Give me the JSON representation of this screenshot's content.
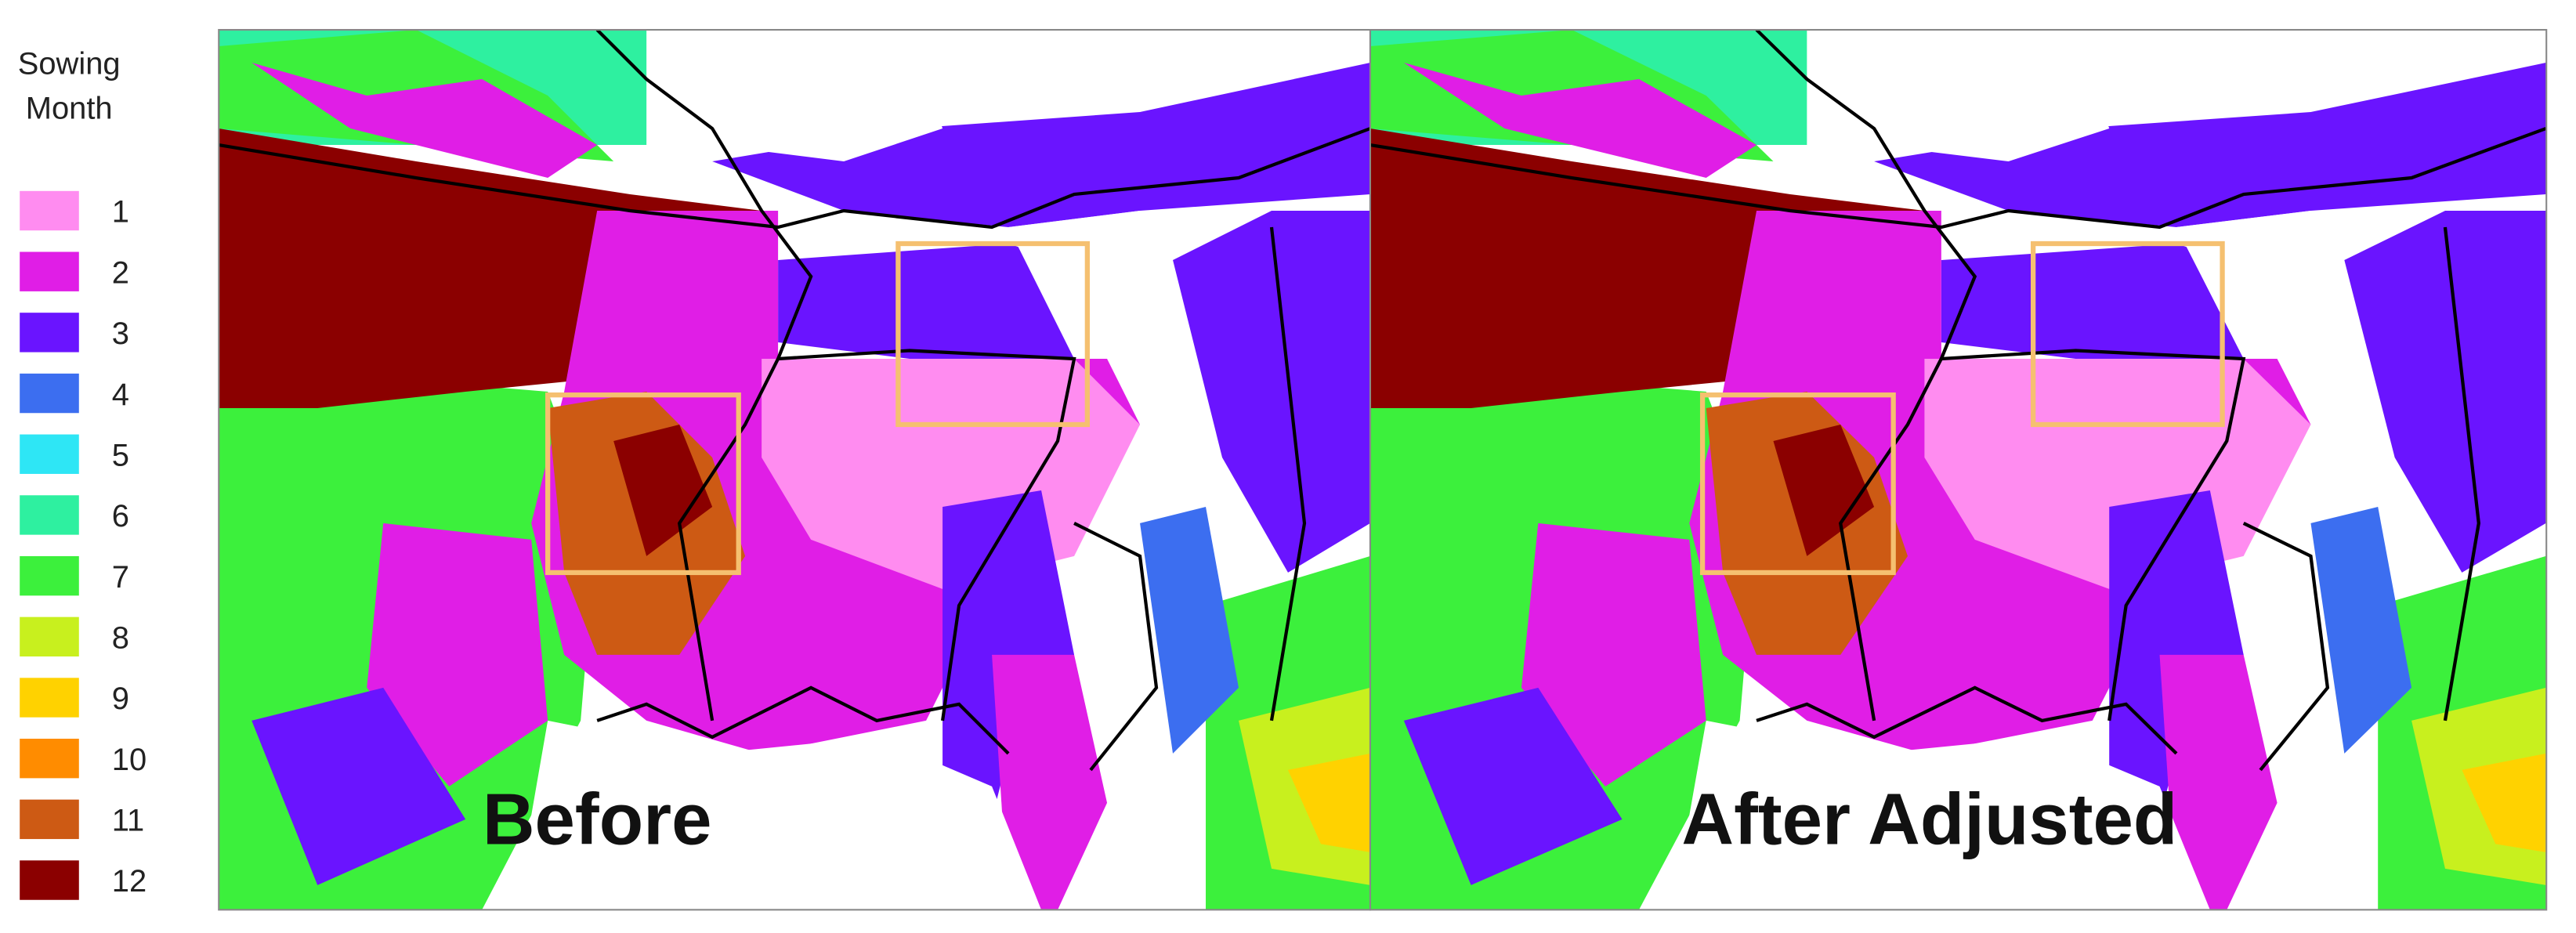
{
  "legend": {
    "title_lines": [
      "Sowing",
      "Month"
    ],
    "items": [
      {
        "label": "1",
        "color": "#ff8cf0"
      },
      {
        "label": "2",
        "color": "#e01ee6"
      },
      {
        "label": "3",
        "color": "#6a14ff"
      },
      {
        "label": "4",
        "color": "#3c6ef0"
      },
      {
        "label": "5",
        "color": "#2ee6f5"
      },
      {
        "label": "6",
        "color": "#2ef0a0"
      },
      {
        "label": "7",
        "color": "#3cf03c"
      },
      {
        "label": "8",
        "color": "#c8f01e"
      },
      {
        "label": "9",
        "color": "#ffd200"
      },
      {
        "label": "10",
        "color": "#ff8c00"
      },
      {
        "label": "11",
        "color": "#cd5a14"
      },
      {
        "label": "12",
        "color": "#8b0000"
      }
    ]
  },
  "panels": [
    {
      "label": "Before"
    },
    {
      "label": "After Adjusted"
    }
  ]
}
